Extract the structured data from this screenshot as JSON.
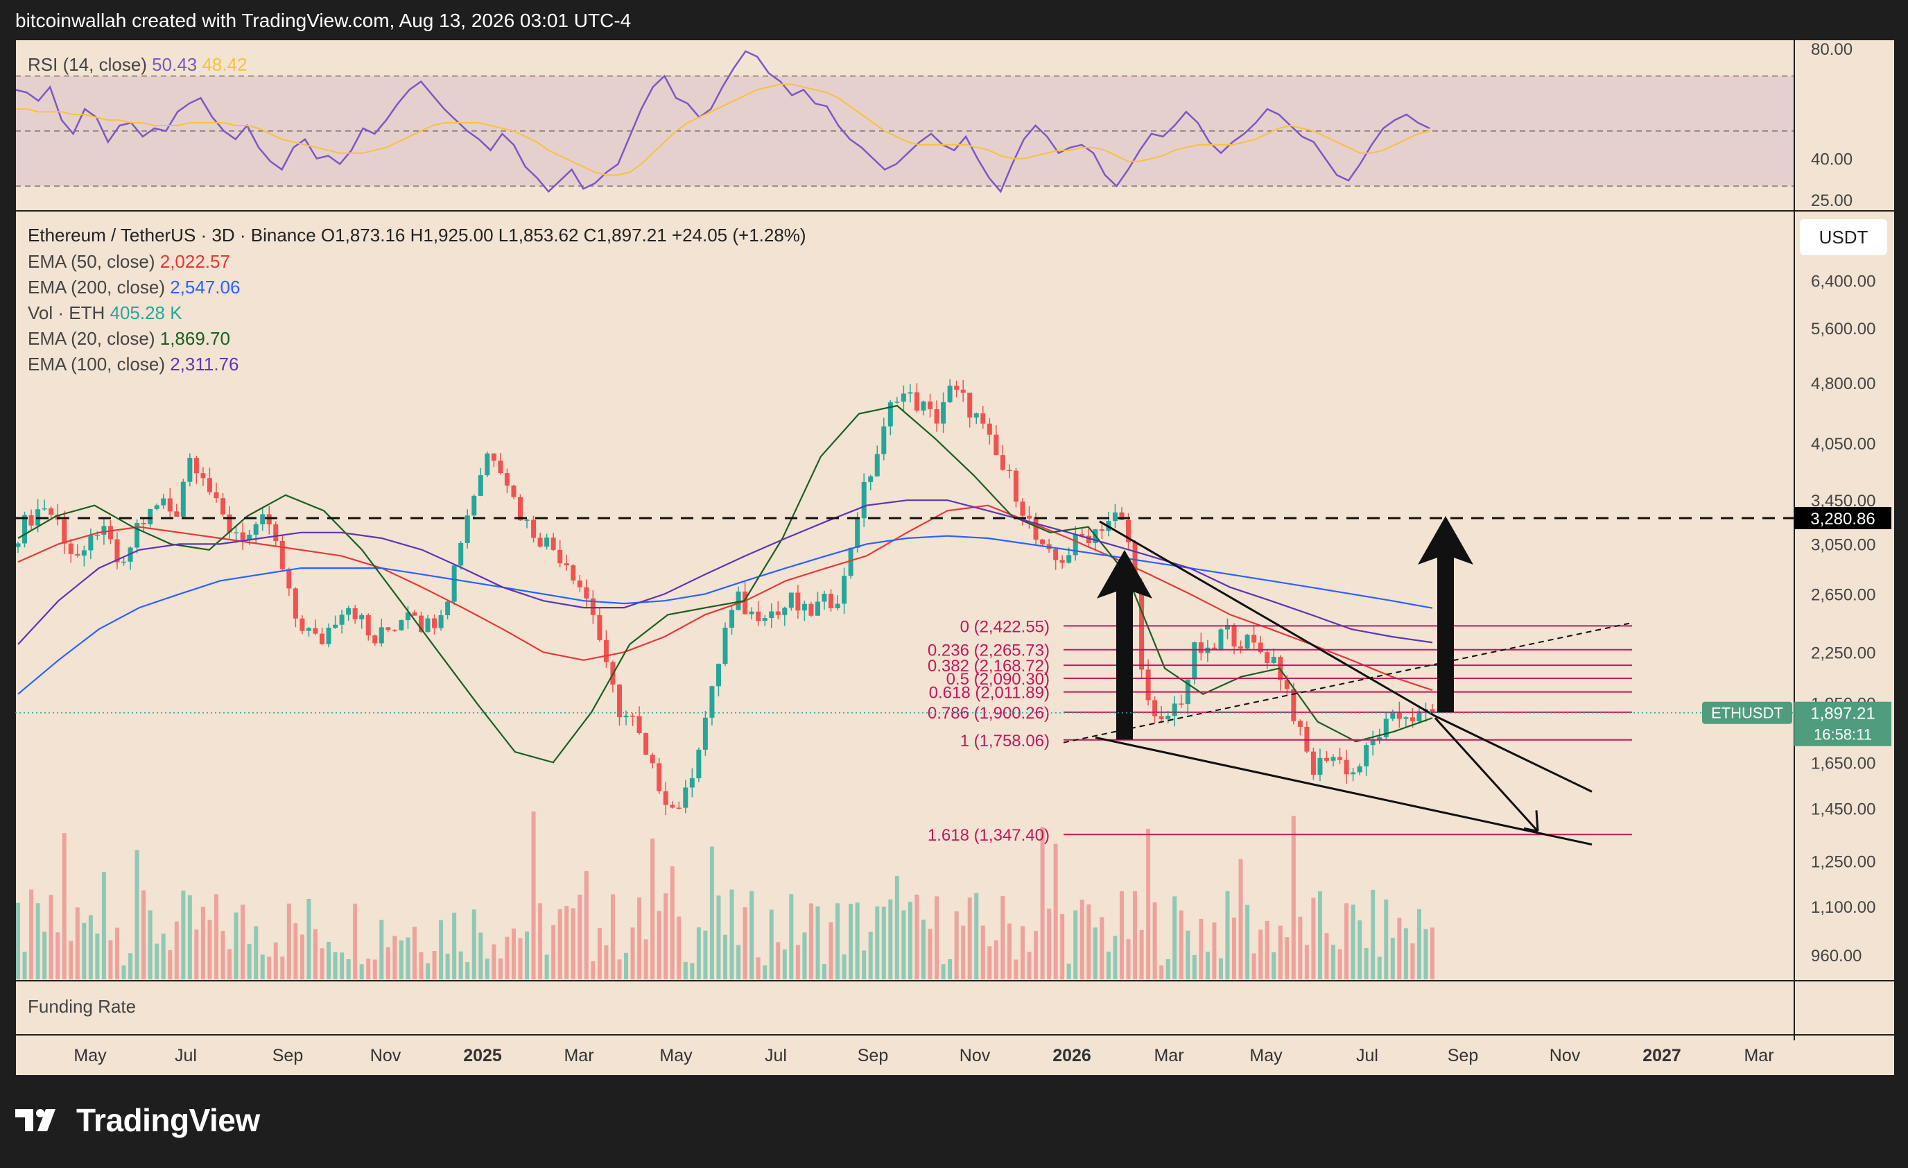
{
  "header": {
    "attribution": "bitcoinwallah created with TradingView.com, Aug 13, 2026 03:01 UTC-4"
  },
  "brand": {
    "name": "TradingView"
  },
  "chart_data": {
    "type": "candlestick",
    "rsi": {
      "label": "RSI (14, close)",
      "value": "50.43",
      "ma_value": "48.42",
      "levels": [
        70,
        50,
        30
      ],
      "ticks": [
        "80.00",
        "40.00",
        "25.00"
      ],
      "ylim": [
        22,
        82
      ],
      "line_color": "#7e57c2",
      "ma_color": "#f5c242",
      "values": [
        65,
        64,
        61,
        66,
        54,
        49,
        58,
        55,
        46,
        52,
        53,
        48,
        51,
        50,
        57,
        60,
        62,
        55,
        50,
        47,
        52,
        44,
        39,
        36,
        44,
        47,
        40,
        41,
        38,
        43,
        51,
        49,
        54,
        60,
        65,
        68,
        63,
        58,
        54,
        50,
        47,
        43,
        49,
        45,
        37,
        33,
        28,
        32,
        36,
        29,
        31,
        35,
        38,
        48,
        58,
        66,
        70,
        62,
        60,
        55,
        58,
        66,
        73,
        79,
        77,
        71,
        68,
        63,
        65,
        60,
        59,
        52,
        47,
        44,
        40,
        36,
        38,
        42,
        46,
        49,
        45,
        43,
        48,
        40,
        33,
        28,
        38,
        47,
        52,
        48,
        42,
        44,
        45,
        42,
        34,
        30,
        36,
        43,
        49,
        48,
        52,
        57,
        53,
        46,
        42,
        46,
        49,
        53,
        58,
        56,
        52,
        48,
        46,
        40,
        34,
        32,
        38,
        45,
        51,
        54,
        56,
        53,
        51
      ],
      "ma": [
        58,
        58,
        57,
        57,
        57,
        56,
        56,
        55,
        54,
        54,
        53,
        53,
        52,
        52,
        52,
        53,
        53,
        53,
        53,
        52,
        52,
        51,
        49,
        47,
        46,
        45,
        44,
        43,
        42,
        42,
        42,
        43,
        44,
        46,
        48,
        50,
        52,
        53,
        53,
        53,
        53,
        52,
        51,
        50,
        48,
        46,
        43,
        41,
        39,
        37,
        35,
        34,
        34,
        35,
        38,
        42,
        46,
        50,
        53,
        55,
        57,
        59,
        61,
        63,
        65,
        66,
        67,
        67,
        66,
        65,
        64,
        62,
        59,
        56,
        53,
        50,
        48,
        46,
        45,
        45,
        45,
        45,
        45,
        44,
        43,
        41,
        40,
        40,
        41,
        42,
        43,
        43,
        44,
        44,
        43,
        41,
        39,
        39,
        40,
        41,
        43,
        44,
        45,
        45,
        45,
        45,
        46,
        47,
        49,
        51,
        52,
        51,
        50,
        48,
        46,
        44,
        42,
        42,
        43,
        45,
        47,
        49,
        50
      ]
    },
    "price": {
      "symbol_line": "Ethereum / TetherUS · 3D · Binance",
      "ohlc": {
        "O": "1,873.16",
        "H": "1,925.00",
        "L": "1,853.62",
        "C": "1,897.21",
        "change": "+24.05 (+1.28%)"
      },
      "log_scale": true,
      "ylim": [
        900,
        7400
      ],
      "currency": "USDT",
      "yticks": [
        "6,400.00",
        "5,600.00",
        "4,800.00",
        "4,050.00",
        "3,450.00",
        "3,050.00",
        "2,650.00",
        "2,250.00",
        "1,950.00",
        "1,650.00",
        "1,450.00",
        "1,250.00",
        "1,100.00",
        "960.00"
      ],
      "ytick_values": [
        6400,
        5600,
        4800,
        4050,
        3450,
        3050,
        2650,
        2250,
        1950,
        1650,
        1450,
        1250,
        1100,
        960
      ],
      "last_price_label": "ETHUSDT",
      "last_price": "1,897.21",
      "countdown": "16:58:11",
      "horizontal_line_price": "3,280.86",
      "horizontal_line_value": 3280.86,
      "key_points": [
        3150,
        3300,
        3400,
        3250,
        3000,
        2900,
        3200,
        3050,
        2800,
        3200,
        3300,
        3450,
        3300,
        3900,
        3800,
        3400,
        3200,
        3150,
        3100,
        3300,
        2900,
        2500,
        2400,
        2300,
        2450,
        2600,
        2500,
        2300,
        2380,
        2450,
        2600,
        2400,
        2500,
        2700,
        3200,
        3600,
        4000,
        3800,
        3400,
        3200,
        3100,
        3000,
        2900,
        2700,
        2500,
        2100,
        1900,
        1850,
        1650,
        1550,
        1450,
        1500,
        1750,
        2000,
        2400,
        2600,
        2500,
        2550,
        2500,
        2600,
        2500,
        2550,
        2600,
        2700,
        3300,
        3700,
        4100,
        4700,
        4600,
        4500,
        4300,
        4700,
        4600,
        4400,
        4100,
        3800,
        3600,
        3300,
        3000,
        2900,
        2950,
        3100,
        3150,
        3250,
        3300,
        3000,
        2000,
        1800,
        1900,
        2000,
        2300,
        2200,
        2400,
        2350,
        2300,
        2250,
        2200,
        2000,
        1750,
        1600,
        1700,
        1650,
        1600,
        1700,
        1800,
        1850,
        1900,
        1870,
        1897
      ],
      "ema_lines": [
        {
          "name": "EMA (50, close)",
          "value": "2,022.57",
          "color": "#e53935",
          "values": [
            2900,
            3050,
            3150,
            3200,
            3150,
            3100,
            3050,
            3000,
            2950,
            2850,
            2700,
            2550,
            2400,
            2250,
            2200,
            2250,
            2350,
            2500,
            2600,
            2750,
            2850,
            2950,
            3150,
            3350,
            3400,
            3250,
            3100,
            2950,
            2800,
            2650,
            2500,
            2400,
            2300,
            2200,
            2100,
            2022
          ]
        },
        {
          "name": "EMA (200, close)",
          "value": "2,547.06",
          "color": "#2962ff",
          "values": [
            2000,
            2200,
            2400,
            2550,
            2650,
            2750,
            2800,
            2850,
            2850,
            2850,
            2800,
            2750,
            2700,
            2650,
            2600,
            2580,
            2600,
            2650,
            2750,
            2850,
            2950,
            3050,
            3100,
            3120,
            3100,
            3050,
            3000,
            2950,
            2900,
            2850,
            2800,
            2750,
            2700,
            2650,
            2600,
            2547
          ]
        },
        {
          "name": "Vol · ETH",
          "value": "405.28 K",
          "color": "#26a69a"
        },
        {
          "name": "EMA (20, close)",
          "value": "1,869.70",
          "color": "#1b5e20",
          "values": [
            3100,
            3300,
            3400,
            3200,
            3050,
            3000,
            3300,
            3500,
            3350,
            3000,
            2600,
            2250,
            1950,
            1700,
            1650,
            1900,
            2300,
            2500,
            2550,
            2600,
            3100,
            3900,
            4400,
            4500,
            4100,
            3700,
            3300,
            3150,
            3200,
            2800,
            2150,
            2000,
            2100,
            2150,
            1850,
            1750,
            1800,
            1870
          ]
        },
        {
          "name": "EMA (100, close)",
          "value": "2,311.76",
          "color": "#5e35b1",
          "values": [
            2300,
            2600,
            2850,
            3000,
            3050,
            3050,
            3100,
            3150,
            3150,
            3100,
            3000,
            2850,
            2700,
            2600,
            2550,
            2550,
            2650,
            2800,
            2950,
            3100,
            3250,
            3400,
            3450,
            3450,
            3350,
            3250,
            3150,
            3050,
            2950,
            2850,
            2700,
            2600,
            2500,
            2400,
            2350,
            2312
          ]
        }
      ],
      "fib_levels": [
        {
          "label": "0 (2,422.55)",
          "price": 2422.55
        },
        {
          "label": "0.236 (2,265.73)",
          "price": 2265.73
        },
        {
          "label": "0.382 (2,168.72)",
          "price": 2168.72
        },
        {
          "label": "0.5 (2,090.30)",
          "price": 2090.3
        },
        {
          "label": "0.618 (2,011.89)",
          "price": 2011.89
        },
        {
          "label": "0.786 (1,900.26)",
          "price": 1900.26
        },
        {
          "label": "1 (1,758.06)",
          "price": 1758.06
        },
        {
          "label": "1.618 (1,347.40)",
          "price": 1347.4
        }
      ],
      "fib_color": "#c2185b"
    },
    "x_ticks": [
      {
        "label": "May",
        "bold": false
      },
      {
        "label": "Jul",
        "bold": false
      },
      {
        "label": "Sep",
        "bold": false
      },
      {
        "label": "Nov",
        "bold": false
      },
      {
        "label": "2025",
        "bold": true
      },
      {
        "label": "Mar",
        "bold": false
      },
      {
        "label": "May",
        "bold": false
      },
      {
        "label": "Jul",
        "bold": false
      },
      {
        "label": "Sep",
        "bold": false
      },
      {
        "label": "Nov",
        "bold": false
      },
      {
        "label": "2026",
        "bold": true
      },
      {
        "label": "Mar",
        "bold": false
      },
      {
        "label": "May",
        "bold": false
      },
      {
        "label": "Jul",
        "bold": false
      },
      {
        "label": "Sep",
        "bold": false
      },
      {
        "label": "Nov",
        "bold": false
      },
      {
        "label": "2027",
        "bold": true
      },
      {
        "label": "Mar",
        "bold": false
      }
    ],
    "funding_label": "Funding Rate",
    "colors": {
      "up": "#26a69a",
      "down": "#ef5350",
      "background": "#f2e3d3"
    }
  }
}
